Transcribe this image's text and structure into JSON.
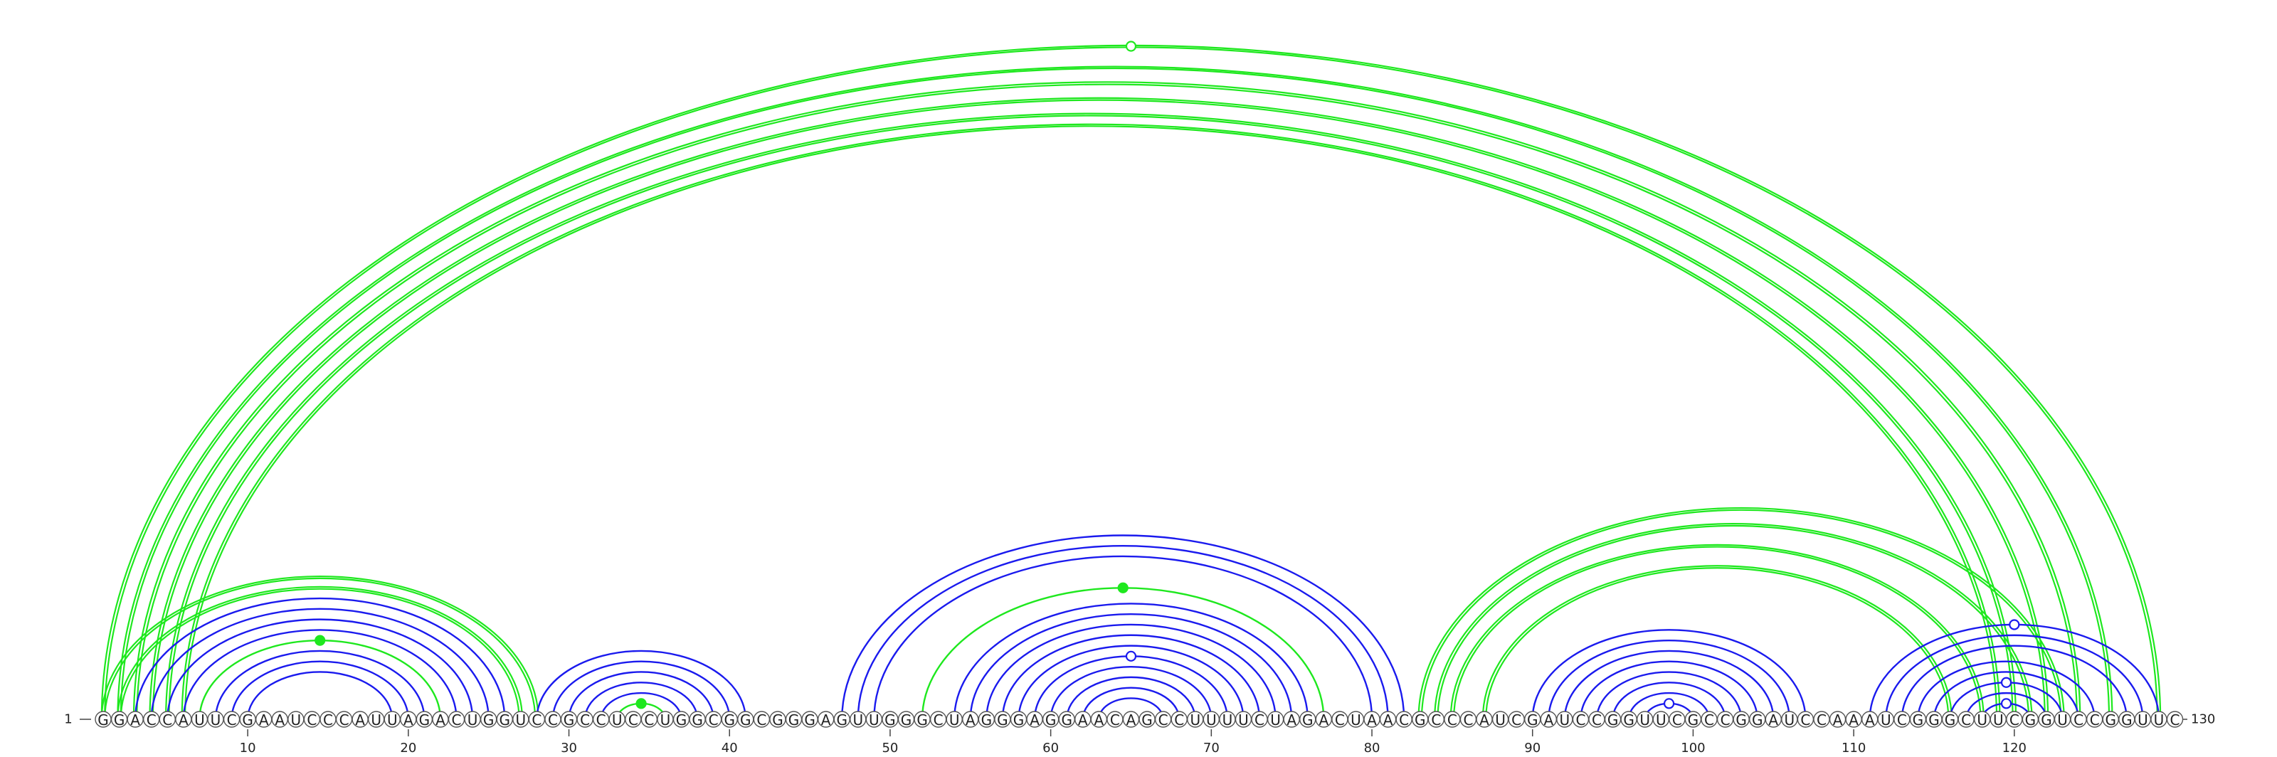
{
  "diagram": {
    "sequence": "GGACCAUUCGAAUCCCAUUAGACUGGUCCGCCUCCUGGCGGCGGGAGUUGGGCUAGGGAGGAACAGCCUUUUCUAGACUAACGCCCAUCGAUCCGGUUCGCCGGAUCCAAAUCGGGCUUCGGUCCGGUUC",
    "start_label": "1",
    "end_label": "130",
    "tick_labels": [
      "10",
      "20",
      "30",
      "40",
      "50",
      "60",
      "70",
      "80",
      "90",
      "100",
      "110",
      "120"
    ],
    "colors": {
      "blue": "#1a1aee",
      "green": "#1ee81e"
    },
    "pairs": [
      {
        "i": 1,
        "j": 129,
        "color": "green",
        "double": true
      },
      {
        "i": 2,
        "j": 126,
        "color": "green",
        "double": true
      },
      {
        "i": 3,
        "j": 124,
        "color": "green",
        "double": true
      },
      {
        "i": 4,
        "j": 122,
        "color": "green",
        "double": true
      },
      {
        "i": 5,
        "j": 120,
        "color": "green",
        "double": true
      },
      {
        "i": 6,
        "j": 119,
        "color": "green",
        "double": true
      },
      {
        "i": 1,
        "j": 28,
        "color": "green",
        "double": true
      },
      {
        "i": 2,
        "j": 27,
        "color": "green",
        "double": true
      },
      {
        "i": 3,
        "j": 26,
        "color": "blue"
      },
      {
        "i": 4,
        "j": 25,
        "color": "blue"
      },
      {
        "i": 5,
        "j": 24,
        "color": "blue"
      },
      {
        "i": 6,
        "j": 23,
        "color": "blue"
      },
      {
        "i": 7,
        "j": 22,
        "color": "green"
      },
      {
        "i": 8,
        "j": 21,
        "color": "blue"
      },
      {
        "i": 9,
        "j": 20,
        "color": "blue"
      },
      {
        "i": 10,
        "j": 19,
        "color": "blue"
      },
      {
        "i": 28,
        "j": 41,
        "color": "blue"
      },
      {
        "i": 29,
        "j": 40,
        "color": "blue"
      },
      {
        "i": 30,
        "j": 39,
        "color": "blue"
      },
      {
        "i": 31,
        "j": 38,
        "color": "blue"
      },
      {
        "i": 32,
        "j": 37,
        "color": "blue"
      },
      {
        "i": 33,
        "j": 36,
        "color": "green"
      },
      {
        "i": 47,
        "j": 82,
        "color": "blue"
      },
      {
        "i": 48,
        "j": 81,
        "color": "blue"
      },
      {
        "i": 49,
        "j": 80,
        "color": "blue"
      },
      {
        "i": 52,
        "j": 77,
        "color": "green"
      },
      {
        "i": 54,
        "j": 76,
        "color": "blue"
      },
      {
        "i": 55,
        "j": 75,
        "color": "blue"
      },
      {
        "i": 56,
        "j": 74,
        "color": "blue"
      },
      {
        "i": 57,
        "j": 73,
        "color": "blue"
      },
      {
        "i": 58,
        "j": 72,
        "color": "blue"
      },
      {
        "i": 59,
        "j": 71,
        "color": "blue"
      },
      {
        "i": 60,
        "j": 70,
        "color": "blue"
      },
      {
        "i": 61,
        "j": 69,
        "color": "blue"
      },
      {
        "i": 62,
        "j": 68,
        "color": "blue"
      },
      {
        "i": 63,
        "j": 67,
        "color": "blue"
      },
      {
        "i": 83,
        "j": 123,
        "color": "green",
        "double": true
      },
      {
        "i": 84,
        "j": 121,
        "color": "green",
        "double": true
      },
      {
        "i": 85,
        "j": 118,
        "color": "green",
        "double": true
      },
      {
        "i": 87,
        "j": 116,
        "color": "green",
        "double": true
      },
      {
        "i": 90,
        "j": 107,
        "color": "blue"
      },
      {
        "i": 91,
        "j": 106,
        "color": "blue"
      },
      {
        "i": 92,
        "j": 105,
        "color": "blue"
      },
      {
        "i": 93,
        "j": 104,
        "color": "blue"
      },
      {
        "i": 94,
        "j": 103,
        "color": "blue"
      },
      {
        "i": 95,
        "j": 102,
        "color": "blue"
      },
      {
        "i": 96,
        "j": 101,
        "color": "blue"
      },
      {
        "i": 97,
        "j": 100,
        "color": "blue"
      },
      {
        "i": 111,
        "j": 129,
        "color": "blue"
      },
      {
        "i": 112,
        "j": 128,
        "color": "blue"
      },
      {
        "i": 113,
        "j": 127,
        "color": "blue"
      },
      {
        "i": 114,
        "j": 125,
        "color": "blue"
      },
      {
        "i": 115,
        "j": 124,
        "color": "blue"
      },
      {
        "i": 116,
        "j": 123,
        "color": "blue"
      },
      {
        "i": 117,
        "j": 122,
        "color": "blue"
      },
      {
        "i": 118,
        "j": 121,
        "color": "blue"
      }
    ],
    "markers": [
      {
        "i": 1,
        "j": 129,
        "color": "green",
        "filled": false
      },
      {
        "i": 7,
        "j": 22,
        "color": "green",
        "filled": true
      },
      {
        "i": 33,
        "j": 36,
        "color": "green",
        "filled": true
      },
      {
        "i": 52,
        "j": 77,
        "color": "green",
        "filled": true
      },
      {
        "i": 59,
        "j": 71,
        "color": "blue",
        "filled": false
      },
      {
        "i": 97,
        "j": 100,
        "color": "blue",
        "filled": false
      },
      {
        "i": 111,
        "j": 129,
        "color": "blue",
        "filled": false
      },
      {
        "i": 116,
        "j": 123,
        "color": "blue",
        "filled": false
      },
      {
        "i": 118,
        "j": 121,
        "color": "blue",
        "filled": false
      }
    ]
  }
}
